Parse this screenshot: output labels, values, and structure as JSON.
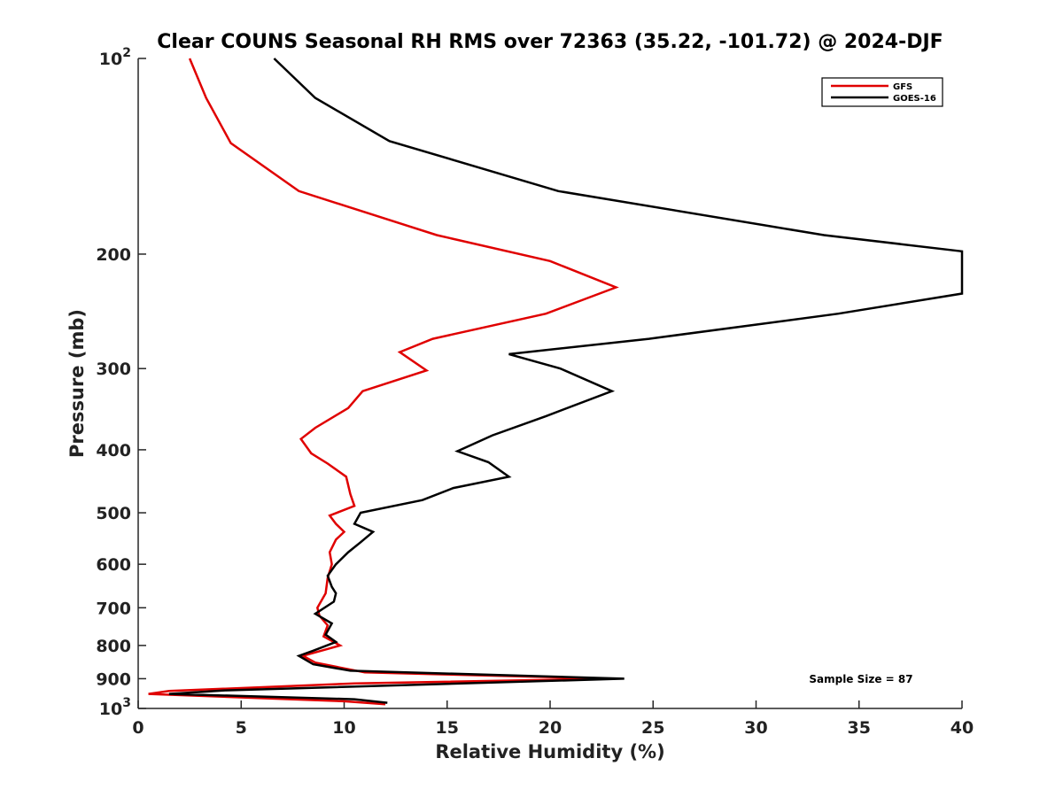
{
  "chart_data": {
    "type": "line",
    "title": "Clear COUNS Seasonal RH RMS over 72363 (35.22, -101.72) @ 2024-DJF",
    "xlabel": "Relative Humidity (%)",
    "ylabel": "Pressure (mb)",
    "xlim": [
      0,
      40
    ],
    "ylim": [
      100,
      1000
    ],
    "yscale": "log",
    "y_reversed": true,
    "xticks": [
      0,
      5,
      10,
      15,
      20,
      25,
      30,
      35,
      40
    ],
    "yticks": [
      100,
      200,
      300,
      400,
      500,
      600,
      700,
      800,
      900,
      1000
    ],
    "ytick_labels": [
      {
        "base": "10",
        "exp": "2"
      },
      {
        "base": "200",
        "exp": ""
      },
      {
        "base": "300",
        "exp": ""
      },
      {
        "base": "400",
        "exp": ""
      },
      {
        "base": "500",
        "exp": ""
      },
      {
        "base": "600",
        "exp": ""
      },
      {
        "base": "700",
        "exp": ""
      },
      {
        "base": "800",
        "exp": ""
      },
      {
        "base": "900",
        "exp": ""
      },
      {
        "base": "10",
        "exp": "3"
      }
    ],
    "legend_position": "top-right",
    "annotation": "Sample Size = 87",
    "series": [
      {
        "name": "GFS",
        "color": "#e00000",
        "points": [
          [
            2.5,
            100
          ],
          [
            3.3,
            115
          ],
          [
            4.5,
            135
          ],
          [
            7.8,
            160
          ],
          [
            14.5,
            187
          ],
          [
            20.0,
            205
          ],
          [
            23.2,
            225
          ],
          [
            19.8,
            247
          ],
          [
            14.3,
            270
          ],
          [
            12.7,
            283
          ],
          [
            14.0,
            302
          ],
          [
            10.9,
            325
          ],
          [
            10.2,
            345
          ],
          [
            8.6,
            370
          ],
          [
            7.9,
            385
          ],
          [
            8.4,
            405
          ],
          [
            9.2,
            420
          ],
          [
            10.1,
            440
          ],
          [
            10.3,
            468
          ],
          [
            10.5,
            488
          ],
          [
            9.3,
            505
          ],
          [
            9.6,
            520
          ],
          [
            10.0,
            535
          ],
          [
            9.6,
            550
          ],
          [
            9.3,
            575
          ],
          [
            9.4,
            600
          ],
          [
            9.2,
            630
          ],
          [
            9.1,
            665
          ],
          [
            8.7,
            700
          ],
          [
            8.8,
            720
          ],
          [
            9.2,
            745
          ],
          [
            9.0,
            775
          ],
          [
            9.8,
            800
          ],
          [
            8.0,
            830
          ],
          [
            8.6,
            850
          ],
          [
            9.8,
            865
          ],
          [
            11.0,
            880
          ],
          [
            23.0,
            900
          ],
          [
            10.5,
            915
          ],
          [
            1.5,
            940
          ],
          [
            0.5,
            950
          ],
          [
            10.0,
            975
          ],
          [
            12.0,
            985
          ]
        ]
      },
      {
        "name": "GOES-16",
        "color": "#000000",
        "points": [
          [
            6.6,
            100
          ],
          [
            8.6,
            115
          ],
          [
            12.2,
            134
          ],
          [
            20.4,
            160
          ],
          [
            33.3,
            187
          ],
          [
            40.0,
            198
          ],
          [
            40.0,
            230
          ],
          [
            34.0,
            247
          ],
          [
            24.8,
            270
          ],
          [
            18.0,
            285
          ],
          [
            20.5,
            300
          ],
          [
            23.0,
            325
          ],
          [
            19.8,
            355
          ],
          [
            17.2,
            380
          ],
          [
            15.5,
            402
          ],
          [
            17.0,
            418
          ],
          [
            18.0,
            440
          ],
          [
            15.3,
            458
          ],
          [
            13.8,
            478
          ],
          [
            10.8,
            500
          ],
          [
            10.5,
            520
          ],
          [
            11.4,
            535
          ],
          [
            10.8,
            555
          ],
          [
            10.2,
            575
          ],
          [
            9.6,
            600
          ],
          [
            9.2,
            625
          ],
          [
            9.4,
            650
          ],
          [
            9.6,
            665
          ],
          [
            9.5,
            685
          ],
          [
            8.6,
            715
          ],
          [
            9.4,
            740
          ],
          [
            9.1,
            770
          ],
          [
            9.6,
            790
          ],
          [
            8.5,
            815
          ],
          [
            7.8,
            830
          ],
          [
            8.5,
            855
          ],
          [
            10.3,
            875
          ],
          [
            23.6,
            900
          ],
          [
            4.2,
            938
          ],
          [
            1.5,
            950
          ],
          [
            10.5,
            968
          ],
          [
            12.1,
            980
          ]
        ]
      }
    ]
  }
}
